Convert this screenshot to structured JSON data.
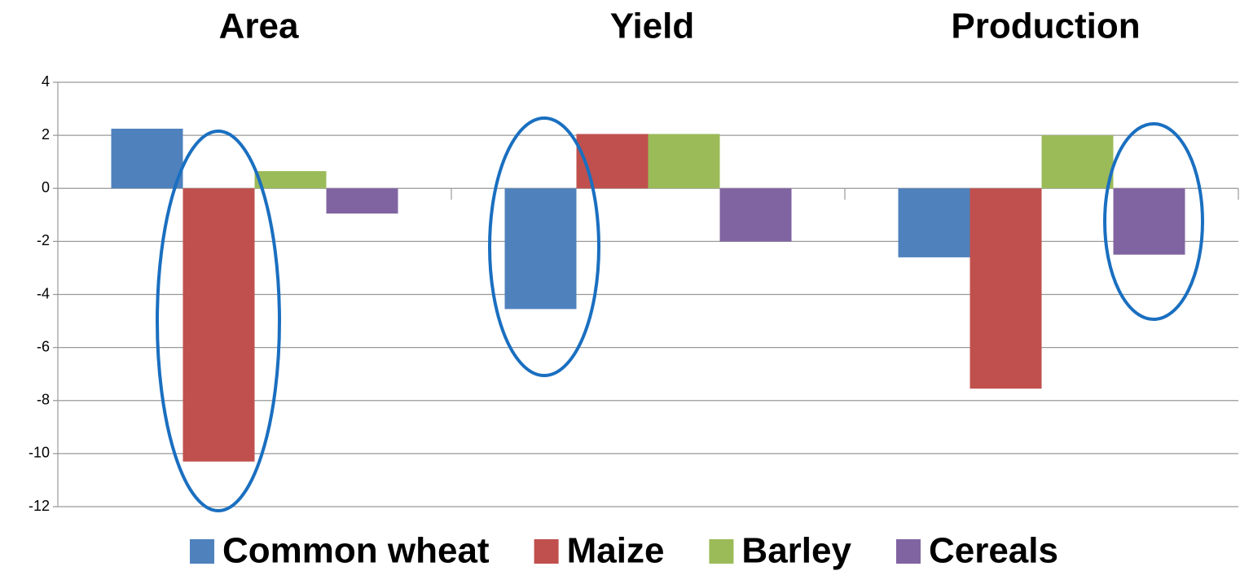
{
  "chart_data": {
    "type": "bar",
    "categories": [
      "Area",
      "Yield",
      "Production"
    ],
    "series": [
      {
        "name": "Common wheat",
        "color": "#4f81bd",
        "values": [
          2.25,
          -4.55,
          -2.6
        ]
      },
      {
        "name": "Maize",
        "color": "#c0504d",
        "values": [
          -10.3,
          2.05,
          -7.55
        ]
      },
      {
        "name": "Barley",
        "color": "#9bbb59",
        "values": [
          0.65,
          2.05,
          2.0
        ]
      },
      {
        "name": "Cereals",
        "color": "#8064a2",
        "values": [
          -0.95,
          -2.0,
          -2.5
        ]
      }
    ],
    "ylim": [
      -12,
      4
    ],
    "yticks": [
      -12,
      -10,
      -8,
      -6,
      -4,
      -2,
      0,
      2,
      4
    ],
    "grid": true,
    "legend": "bottom"
  }
}
